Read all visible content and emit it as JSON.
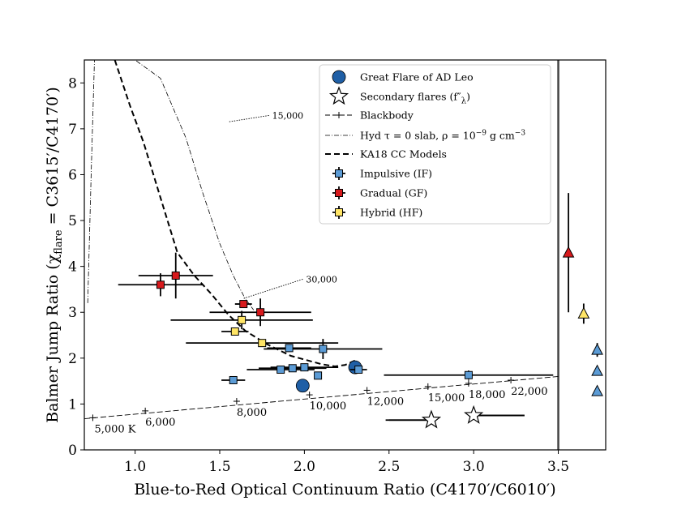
{
  "chart_data": {
    "type": "scatter",
    "xlabel": "Blue-to-Red Optical Continuum Ratio (C4170′/C6010′)",
    "ylabel_prefix": "Balmer Jump Ratio (χ",
    "ylabel_sub": "flare",
    "ylabel_suffix": " = C3615′/C4170′)",
    "xlim": [
      0.7,
      3.78
    ],
    "ylim": [
      0,
      8.5
    ],
    "xticks": [
      1.0,
      1.5,
      2.0,
      2.5,
      3.0,
      3.5
    ],
    "xtick_labels": [
      "1.0",
      "1.5",
      "2.0",
      "2.5",
      "3.0",
      "3.5"
    ],
    "yticks": [
      0,
      1,
      2,
      3,
      4,
      5,
      6,
      7,
      8
    ],
    "ytick_labels": [
      "0",
      "1",
      "2",
      "3",
      "4",
      "5",
      "6",
      "7",
      "8"
    ],
    "separator_x": 3.5,
    "colors": {
      "impulsive": "#5b9bd5",
      "gradual": "#d7191c",
      "hybrid": "#ffe566",
      "adleo": "#1f5fa6",
      "axes": "#000000"
    },
    "legend": {
      "location": "upper-right",
      "entries": [
        {
          "label": "Great Flare of AD Leo",
          "marker": "big-circle"
        },
        {
          "label": "Secondary flares (f″",
          "label_sub": "λ",
          "label_suffix": ")",
          "marker": "star"
        },
        {
          "label": "Blackbody",
          "marker": "plus-line"
        },
        {
          "label": "Hyd τ = 0 slab, ρ = 10",
          "label_sup": "−9",
          "label_suffix": " g cm",
          "label_sup2": "−3",
          "marker": "dashdot-line"
        },
        {
          "label": "KA18 CC Models",
          "marker": "dashed-line"
        },
        {
          "label": "Impulsive (IF)",
          "marker": "square-impulsive"
        },
        {
          "label": "Gradual (GF)",
          "marker": "square-gradual"
        },
        {
          "label": "Hybrid (HF)",
          "marker": "square-hybrid"
        }
      ]
    },
    "blackbody": {
      "line": [
        [
          0.7,
          0.68
        ],
        [
          3.5,
          1.6
        ]
      ],
      "points": [
        {
          "x": 0.75,
          "y": 0.7,
          "label": "5,000 K",
          "label_pos": "below"
        },
        {
          "x": 1.06,
          "y": 0.85,
          "label": "6,000",
          "label_pos": "below"
        },
        {
          "x": 1.6,
          "y": 1.06,
          "label": "8,000",
          "label_pos": "below"
        },
        {
          "x": 2.03,
          "y": 1.2,
          "label": "10,000",
          "label_pos": "below"
        },
        {
          "x": 2.37,
          "y": 1.3,
          "label": "12,000",
          "label_pos": "below"
        },
        {
          "x": 2.73,
          "y": 1.38,
          "label": "15,000",
          "label_pos": "below"
        },
        {
          "x": 2.97,
          "y": 1.45,
          "label": "18,000",
          "label_pos": "below"
        },
        {
          "x": 3.22,
          "y": 1.52,
          "label": "22,000",
          "label_pos": "below"
        }
      ]
    },
    "slab_curve": {
      "points": [
        [
          0.72,
          3.2
        ],
        [
          0.74,
          6.0
        ],
        [
          0.76,
          8.5
        ],
        [
          1.0,
          8.5
        ],
        [
          1.15,
          8.1
        ],
        [
          1.3,
          6.8
        ],
        [
          1.4,
          5.6
        ],
        [
          1.5,
          4.5
        ],
        [
          1.58,
          3.8
        ],
        [
          1.65,
          3.3
        ],
        [
          1.7,
          3.05
        ]
      ],
      "labels": [
        {
          "text": "15,000",
          "x": 1.8,
          "y": 7.22,
          "arrow_to": [
            1.55,
            7.15
          ]
        },
        {
          "text": "30,000",
          "x": 2.0,
          "y": 3.65,
          "arrow_to": [
            1.64,
            3.3
          ]
        }
      ]
    },
    "ka18_curve": {
      "points": [
        [
          0.88,
          8.5
        ],
        [
          0.97,
          7.5
        ],
        [
          1.05,
          6.7
        ],
        [
          1.15,
          5.5
        ],
        [
          1.25,
          4.3
        ],
        [
          1.35,
          3.8
        ],
        [
          1.45,
          3.4
        ],
        [
          1.55,
          2.95
        ],
        [
          1.65,
          2.6
        ],
        [
          1.78,
          2.3
        ],
        [
          1.92,
          2.05
        ],
        [
          2.1,
          1.87
        ],
        [
          2.18,
          1.82
        ],
        [
          2.24,
          1.85
        ],
        [
          2.3,
          1.95
        ]
      ]
    },
    "series": [
      {
        "name": "Impulsive (IF)",
        "color": "#5b9bd5",
        "marker": "square",
        "points": [
          {
            "x": 1.58,
            "y": 1.52,
            "xerr": 0.07,
            "yerr": 0.0
          },
          {
            "x": 1.86,
            "y": 1.75,
            "xerr": 0.2,
            "yerr": 0.05
          },
          {
            "x": 1.93,
            "y": 1.78,
            "xerr": 0.2,
            "yerr": 0.05
          },
          {
            "x": 2.0,
            "y": 1.8,
            "xerr": 0.2,
            "yerr": 0.05
          },
          {
            "x": 2.08,
            "y": 1.62,
            "xerr": 0.0,
            "yerr": 0.0
          },
          {
            "x": 1.91,
            "y": 2.22,
            "xerr": 0.13,
            "yerr": 0.08
          },
          {
            "x": 2.11,
            "y": 2.2,
            "xerr": 0.35,
            "yerr": 0.22
          },
          {
            "x": 2.32,
            "y": 1.75,
            "xerr": 0.05,
            "yerr": 0.05
          },
          {
            "x": 2.97,
            "y": 1.63,
            "xerr": 0.5,
            "yerr": 0.1
          }
        ]
      },
      {
        "name": "Gradual (GF)",
        "color": "#d7191c",
        "marker": "square",
        "points": [
          {
            "x": 1.15,
            "y": 3.6,
            "xerr": 0.25,
            "yerr": 0.25
          },
          {
            "x": 1.24,
            "y": 3.8,
            "xerr": 0.22,
            "yerr": 0.5
          },
          {
            "x": 1.64,
            "y": 3.18,
            "xerr": 0.05,
            "yerr": 0.05
          },
          {
            "x": 1.74,
            "y": 3.0,
            "xerr": 0.3,
            "yerr": 0.3
          }
        ]
      },
      {
        "name": "Hybrid (HF)",
        "color": "#ffe566",
        "marker": "square",
        "points": [
          {
            "x": 1.63,
            "y": 2.83,
            "xerr": 0.42,
            "yerr": 0.2
          },
          {
            "x": 1.59,
            "y": 2.58,
            "xerr": 0.08,
            "yerr": 0.07
          },
          {
            "x": 1.75,
            "y": 2.33,
            "xerr": 0.45,
            "yerr": 0.05
          }
        ]
      }
    ],
    "adleo": [
      {
        "x": 1.99,
        "y": 1.4
      },
      {
        "x": 2.3,
        "y": 1.8
      }
    ],
    "secondary_flares": [
      {
        "x": 2.75,
        "y": 0.65,
        "xerr_low": 0.25,
        "xerr_high": 0.0
      },
      {
        "x": 3.0,
        "y": 0.75,
        "xerr_low": 0.0,
        "xerr_high": 0.3
      }
    ],
    "triangles": [
      {
        "x": 3.56,
        "y": 4.3,
        "color": "#d7191c",
        "yerr": 1.3
      },
      {
        "x": 3.65,
        "y": 2.97,
        "color": "#ffe566",
        "yerr": 0.22
      },
      {
        "x": 3.73,
        "y": 2.18,
        "color": "#5b9bd5",
        "yerr": 0.15
      },
      {
        "x": 3.73,
        "y": 1.72,
        "color": "#5b9bd5",
        "yerr": 0.0
      },
      {
        "x": 3.73,
        "y": 1.28,
        "color": "#5b9bd5",
        "yerr": 0.0
      }
    ]
  }
}
